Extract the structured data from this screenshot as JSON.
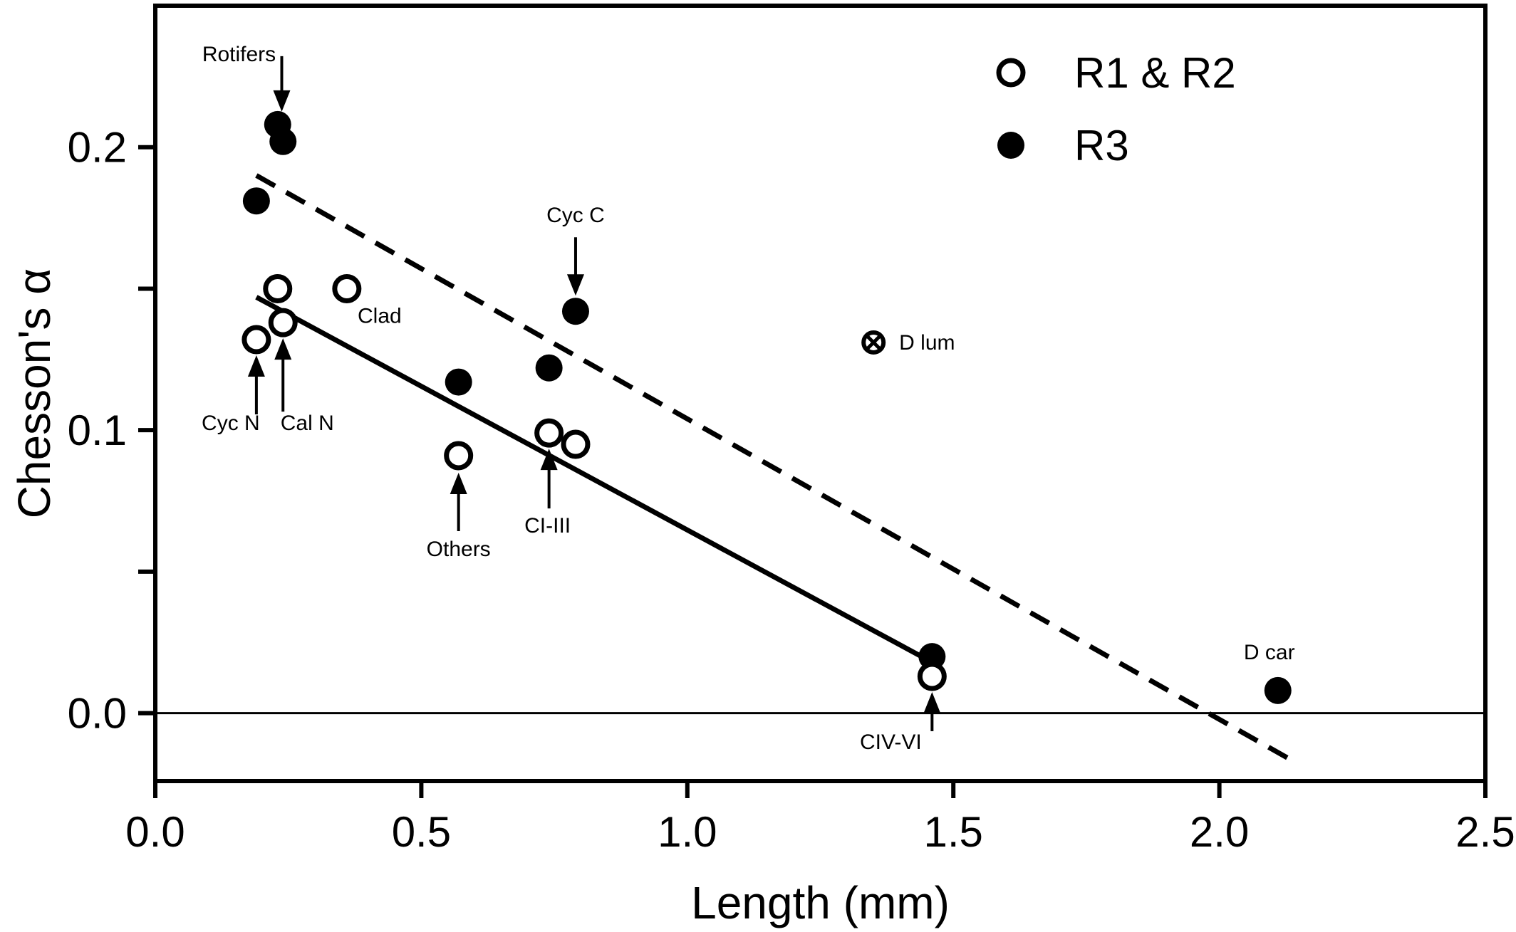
{
  "chart_data": {
    "type": "scatter",
    "xlabel": "Length (mm)",
    "ylabel": "Chesson's α",
    "xlim": [
      0.0,
      2.5
    ],
    "ylim": [
      -0.024,
      0.25
    ],
    "xticks": [
      {
        "value": 0.0,
        "label": "0.0"
      },
      {
        "value": 0.5,
        "label": "0.5"
      },
      {
        "value": 1.0,
        "label": "1.0"
      },
      {
        "value": 1.5,
        "label": "1.5"
      },
      {
        "value": 2.0,
        "label": "2.0"
      },
      {
        "value": 2.5,
        "label": "2.5"
      }
    ],
    "yticks": [
      {
        "value": 0.0,
        "label": "0.0"
      },
      {
        "value": 0.05,
        "label": ""
      },
      {
        "value": 0.1,
        "label": "0.1"
      },
      {
        "value": 0.15,
        "label": ""
      },
      {
        "value": 0.2,
        "label": "0.2"
      }
    ],
    "grid": false,
    "legend_position": "top-right",
    "series": [
      {
        "name": "R1 & R2",
        "marker": "open-circle",
        "points": [
          {
            "x": 0.19,
            "y": 0.132
          },
          {
            "x": 0.23,
            "y": 0.15
          },
          {
            "x": 0.24,
            "y": 0.138
          },
          {
            "x": 0.36,
            "y": 0.15
          },
          {
            "x": 0.57,
            "y": 0.091
          },
          {
            "x": 0.74,
            "y": 0.099
          },
          {
            "x": 0.79,
            "y": 0.095
          },
          {
            "x": 1.46,
            "y": 0.013
          }
        ]
      },
      {
        "name": "R3",
        "marker": "filled-circle",
        "points": [
          {
            "x": 0.19,
            "y": 0.181
          },
          {
            "x": 0.23,
            "y": 0.208
          },
          {
            "x": 0.24,
            "y": 0.202
          },
          {
            "x": 0.57,
            "y": 0.117
          },
          {
            "x": 0.74,
            "y": 0.122
          },
          {
            "x": 0.79,
            "y": 0.142
          },
          {
            "x": 1.46,
            "y": 0.02
          },
          {
            "x": 2.11,
            "y": 0.008
          }
        ]
      }
    ],
    "special_points": [
      {
        "label": "D lum",
        "marker": "circled-x",
        "x": 1.35,
        "y": 0.131
      }
    ],
    "fit_lines": [
      {
        "style": "solid",
        "x": [
          0.19,
          1.46
        ],
        "y": [
          0.147,
          0.018
        ]
      },
      {
        "style": "dashed",
        "x": [
          0.19,
          2.13
        ],
        "y": [
          0.19,
          -0.016
        ]
      }
    ],
    "reference_line": {
      "y": 0.0
    },
    "annotations": [
      {
        "text": "Rotifers",
        "x": 0.235,
        "y": 0.207,
        "arrow": "down"
      },
      {
        "text": "Clad",
        "x": 0.36,
        "y": 0.15,
        "arrow": "none"
      },
      {
        "text": "Cyc C",
        "x": 0.79,
        "y": 0.142,
        "arrow": "down"
      },
      {
        "text": "D lum",
        "x": 1.35,
        "y": 0.131,
        "arrow": "none"
      },
      {
        "text": "Cyc N",
        "x": 0.19,
        "y": 0.132,
        "arrow": "up"
      },
      {
        "text": "Cal N",
        "x": 0.24,
        "y": 0.138,
        "arrow": "up"
      },
      {
        "text": "Others",
        "x": 0.57,
        "y": 0.091,
        "arrow": "up"
      },
      {
        "text": "CI-III",
        "x": 0.74,
        "y": 0.099,
        "arrow": "up"
      },
      {
        "text": "CIV-VI",
        "x": 1.46,
        "y": 0.013,
        "arrow": "up"
      },
      {
        "text": "D car",
        "x": 2.11,
        "y": 0.008,
        "arrow": "none"
      }
    ]
  }
}
